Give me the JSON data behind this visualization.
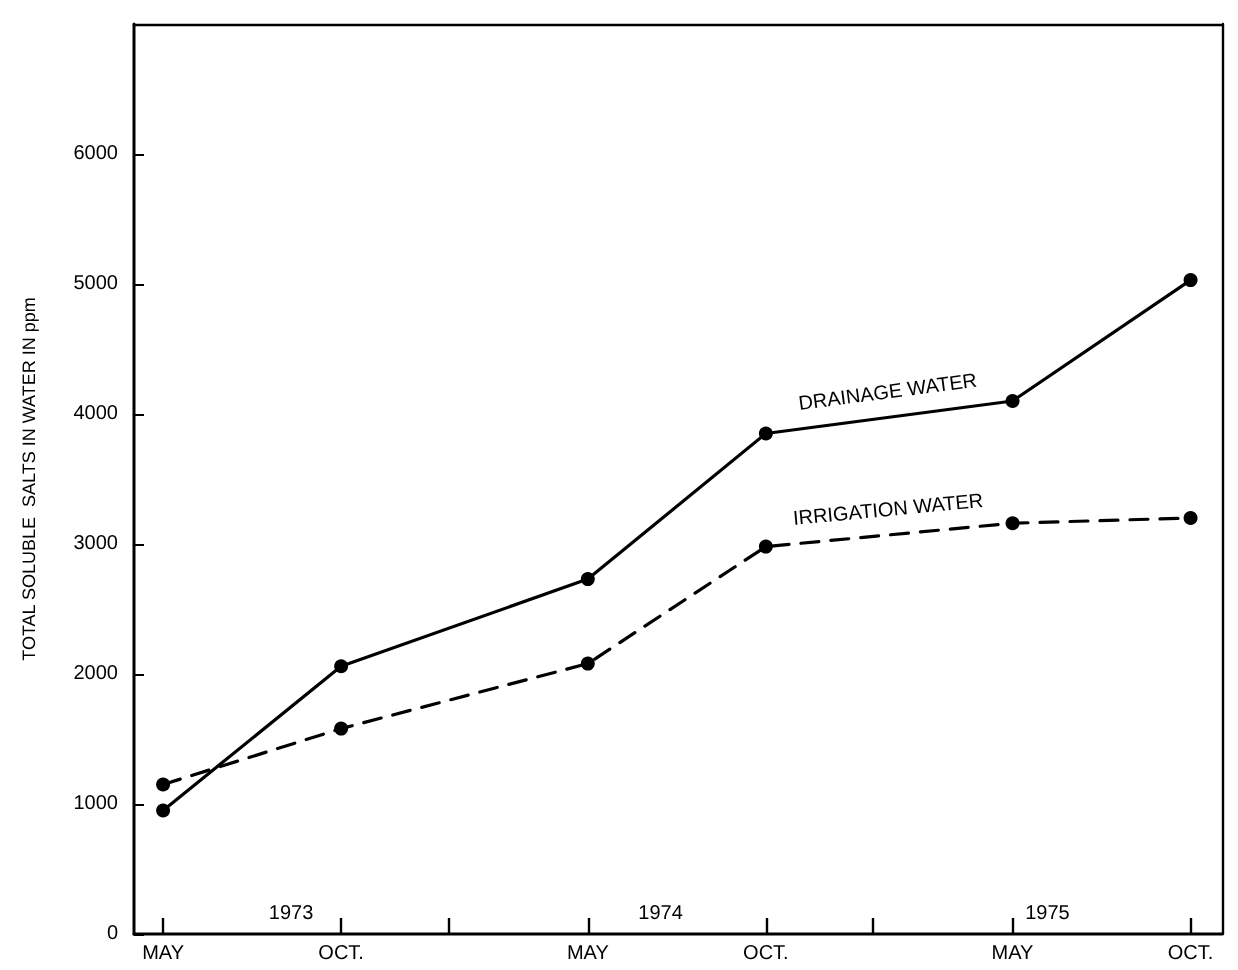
{
  "chart_data": {
    "type": "line",
    "ylabel": "TOTAL SOLUBLE  SALTS IN WATER IN ppm",
    "x": [
      "1973-05-01",
      "1973-10-01",
      "1974-05-01",
      "1974-10-01",
      "1975-05-01",
      "1975-10-01"
    ],
    "xlim": [
      "1973-04-06",
      "1975-10-28"
    ],
    "xticks": [
      {
        "value": "1973-05-01",
        "label": "MAY"
      },
      {
        "value": "1973-10-01",
        "label": "OCT."
      },
      {
        "value": "1974-01-01",
        "label": null
      },
      {
        "value": "1974-05-01",
        "label": "MAY"
      },
      {
        "value": "1974-10-01",
        "label": "OCT."
      },
      {
        "value": "1975-01-01",
        "label": null
      },
      {
        "value": "1975-05-01",
        "label": "MAY"
      },
      {
        "value": "1975-10-01",
        "label": "OCT."
      }
    ],
    "ylim": [
      0,
      7000
    ],
    "yticks": [
      0,
      1000,
      2000,
      3000,
      4000,
      5000,
      6000
    ],
    "series": [
      {
        "name": "DRAINAGE WATER",
        "color": "#000000",
        "line_style": "solid",
        "values": [
          950,
          2060,
          2730,
          3850,
          4100,
          5030
        ]
      },
      {
        "name": "IRRIGATION WATER",
        "color": "#000000",
        "line_style": "dashed",
        "values": [
          1150,
          1580,
          2080,
          2980,
          3160,
          3200
        ]
      }
    ],
    "annotations": [
      "1973",
      "1974",
      "1975"
    ],
    "marker": "circle",
    "grid": false,
    "legend": false
  }
}
